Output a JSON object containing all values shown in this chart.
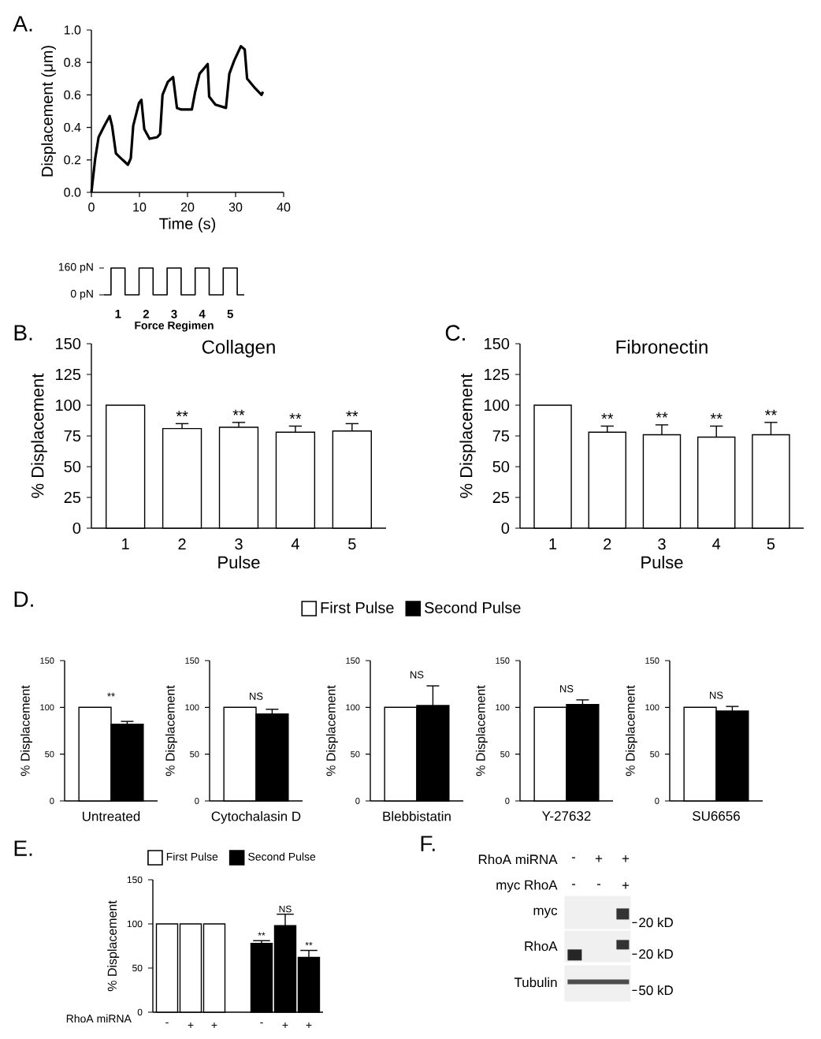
{
  "chart_data": [
    {
      "type": "line",
      "annotations": [
        "A."
      ],
      "xlabel": "Time (s)",
      "ylabel": "Displacement (μm)",
      "color": "#000000",
      "x": [
        0,
        0.8,
        1.5,
        2.7,
        3.8,
        4.3,
        5.1,
        6.5,
        7.6,
        8.2,
        8.7,
        9.9,
        10.4,
        11,
        12.1,
        13.7,
        14.3,
        14.8,
        15.9,
        17,
        17.8,
        18.7,
        20.9,
        21.6,
        22.5,
        24.2,
        24.5,
        25.8,
        28,
        28.7,
        29.7,
        31.1,
        31.9,
        32.4,
        34.1,
        35.4,
        35.7
      ],
      "values": [
        0,
        0.21,
        0.34,
        0.41,
        0.47,
        0.41,
        0.24,
        0.2,
        0.17,
        0.21,
        0.41,
        0.55,
        0.57,
        0.39,
        0.33,
        0.34,
        0.36,
        0.6,
        0.68,
        0.71,
        0.52,
        0.51,
        0.51,
        0.62,
        0.73,
        0.79,
        0.59,
        0.54,
        0.52,
        0.73,
        0.81,
        0.9,
        0.88,
        0.7,
        0.64,
        0.6,
        0.62
      ],
      "xlim": [
        0,
        40
      ],
      "xticks": [
        0,
        10,
        20,
        30,
        40
      ],
      "ylim": [
        0,
        1
      ],
      "yticks": [
        {
          "value": 0,
          "label": "0.0"
        },
        0.2,
        0.4,
        0.6,
        0.8,
        {
          "value": 1,
          "label": "1.0"
        }
      ]
    },
    {
      "type": "step",
      "xlabel": "Force Regimen",
      "color": "#000000",
      "categories": [
        null,
        "1",
        null,
        "2",
        null,
        "3",
        null,
        "4",
        null,
        "5",
        null
      ],
      "values": [
        0,
        160,
        0,
        160,
        0,
        160,
        0,
        160,
        0,
        160,
        0
      ],
      "ylim": [
        0,
        160
      ],
      "yticks": [
        {
          "value": 0,
          "label": "0 pN"
        },
        {
          "value": 160,
          "label": "160 pN"
        }
      ]
    },
    {
      "type": "bar",
      "annotations": [
        "B.",
        "**",
        "**",
        "**",
        "**"
      ],
      "title": "Collagen",
      "xlabel": "Pulse",
      "ylabel": "% Displacement",
      "categories": [
        "1",
        "2",
        "3",
        "4",
        "5"
      ],
      "series": [
        {
          "color": "#ffffff",
          "values": [
            100,
            81,
            82,
            78,
            79
          ],
          "errors": [
            null,
            4,
            4,
            5,
            6
          ]
        }
      ],
      "ylim": [
        0,
        150
      ],
      "yticks": [
        0,
        25,
        50,
        75,
        100,
        125,
        150
      ]
    },
    {
      "type": "bar",
      "annotations": [
        "C.",
        "**",
        "**",
        "**",
        "**"
      ],
      "title": "Fibronectin",
      "xlabel": "Pulse",
      "ylabel": "% Displacement",
      "categories": [
        "1",
        "2",
        "3",
        "4",
        "5"
      ],
      "series": [
        {
          "color": "#ffffff",
          "values": [
            100,
            78,
            76,
            74,
            76
          ],
          "errors": [
            null,
            5,
            8,
            9,
            10
          ]
        }
      ],
      "ylim": [
        0,
        150
      ],
      "yticks": [
        0,
        25,
        50,
        75,
        100,
        125,
        150
      ]
    },
    {
      "type": "bar",
      "annotations": [
        "D.",
        "**"
      ],
      "ylabel": "% Displacement",
      "categories": [
        "Untreated"
      ],
      "legend": "top",
      "series": [
        {
          "name": "First Pulse",
          "color": "#ffffff",
          "values": [
            100
          ]
        },
        {
          "name": "Second Pulse",
          "color": "#000000",
          "values": [
            82
          ],
          "errors": [
            3
          ]
        }
      ],
      "ylim": [
        0,
        150
      ],
      "yticks": [
        0,
        50,
        100,
        150
      ]
    },
    {
      "type": "bar",
      "annotations": [
        "NS"
      ],
      "ylabel": "% Displacement",
      "categories": [
        "Cytochalasin D"
      ],
      "series": [
        {
          "color": "#ffffff",
          "values": [
            100
          ]
        },
        {
          "color": "#000000",
          "values": [
            93
          ],
          "errors": [
            5
          ]
        }
      ],
      "ylim": [
        0,
        150
      ],
      "yticks": [
        0,
        50,
        100,
        150
      ]
    },
    {
      "type": "bar",
      "annotations": [
        "NS"
      ],
      "ylabel": "% Displacement",
      "categories": [
        "Blebbistatin"
      ],
      "series": [
        {
          "color": "#ffffff",
          "values": [
            100
          ]
        },
        {
          "color": "#000000",
          "values": [
            102
          ],
          "errors": [
            21
          ]
        }
      ],
      "ylim": [
        0,
        150
      ],
      "yticks": [
        0,
        50,
        100,
        150
      ]
    },
    {
      "type": "bar",
      "annotations": [
        "NS"
      ],
      "ylabel": "% Displacement",
      "categories": [
        "Y-27632"
      ],
      "series": [
        {
          "color": "#ffffff",
          "values": [
            100
          ]
        },
        {
          "color": "#000000",
          "values": [
            103
          ],
          "errors": [
            5
          ]
        }
      ],
      "ylim": [
        0,
        150
      ],
      "yticks": [
        0,
        50,
        100,
        150
      ]
    },
    {
      "type": "bar",
      "annotations": [
        "NS"
      ],
      "ylabel": "% Displacement",
      "categories": [
        "SU6656"
      ],
      "series": [
        {
          "color": "#ffffff",
          "values": [
            100
          ]
        },
        {
          "color": "#000000",
          "values": [
            96
          ],
          "errors": [
            5
          ]
        }
      ],
      "ylim": [
        0,
        150
      ],
      "yticks": [
        0,
        50,
        100,
        150
      ]
    },
    {
      "type": "bar",
      "annotations": [
        "E.",
        "**",
        "NS",
        "**"
      ],
      "xlabel": "RhoA miRNA",
      "ylabel": "% Displacement",
      "categories": [
        "-",
        "+",
        "+",
        null,
        "-",
        "+",
        "+"
      ],
      "legend": "top",
      "series": [
        {
          "name": "First Pulse",
          "color": "#ffffff",
          "values": [
            100,
            100,
            100,
            null,
            null,
            null,
            null
          ]
        },
        {
          "name": "Second Pulse",
          "color": "#000000",
          "values": [
            null,
            null,
            null,
            null,
            78,
            98,
            62
          ],
          "errors": [
            null,
            null,
            null,
            null,
            3,
            13,
            8
          ]
        }
      ],
      "ylim": [
        0,
        150
      ],
      "yticks": [
        0,
        50,
        100,
        150
      ]
    },
    {
      "type": "other",
      "annotations": [
        "F.",
        "RhoA miRNA",
        "-",
        "+",
        "+",
        "myc RhoA",
        "-",
        "-",
        "+",
        "myc",
        "RhoA",
        "Tubulin",
        "20 kD",
        "20 kD",
        "50 kD"
      ]
    }
  ]
}
